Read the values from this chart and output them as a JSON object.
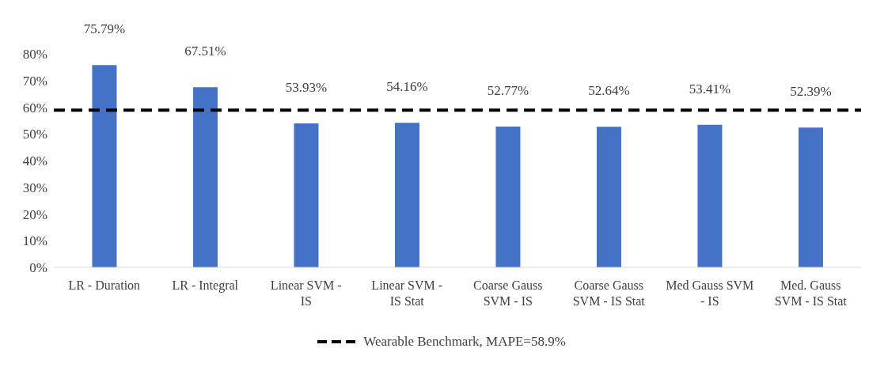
{
  "chart_data": {
    "type": "bar",
    "categories": [
      "LR - Duration",
      "LR - Integral",
      "Linear SVM - IS",
      "Linear SVM - IS Stat",
      "Coarse Gauss SVM - IS",
      "Coarse Gauss SVM - IS Stat",
      "Med Gauss SVM - IS",
      "Med. Gauss SVM - IS Stat"
    ],
    "values": [
      75.79,
      67.51,
      53.93,
      54.16,
      52.77,
      52.64,
      53.41,
      52.39
    ],
    "color": "#4472c4",
    "value_labels": [
      "75.79%",
      "67.51%",
      "53.93%",
      "54.16%",
      "52.77%",
      "52.64%",
      "53.41%",
      "52.39%"
    ],
    "ylim": [
      0,
      80
    ],
    "yticks": [
      {
        "value": 0,
        "label": "0%"
      },
      {
        "value": 10,
        "label": "10%"
      },
      {
        "value": 20,
        "label": "20%"
      },
      {
        "value": 30,
        "label": "30%"
      },
      {
        "value": 40,
        "label": "40%"
      },
      {
        "value": 50,
        "label": "50%"
      },
      {
        "value": 60,
        "label": "60%"
      },
      {
        "value": 70,
        "label": "70%"
      },
      {
        "value": 80,
        "label": "80%"
      }
    ],
    "ref_lines": [
      {
        "axis": "y",
        "value": 58.9,
        "label": "Wearable Benchmark, MAPE=58.9%",
        "color": "#000000",
        "line_style": "dashed"
      }
    ],
    "grid": false,
    "legend": "bottom"
  }
}
